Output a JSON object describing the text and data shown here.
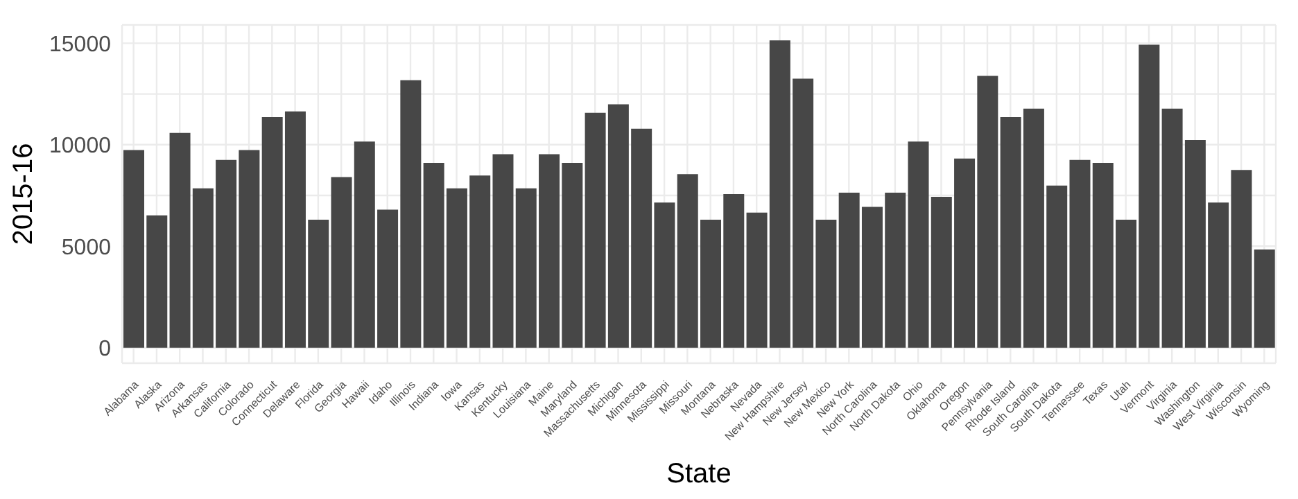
{
  "chart_data": {
    "type": "bar",
    "xlabel": "State",
    "ylabel": "2015-16",
    "categories": [
      "Alabama",
      "Alaska",
      "Arizona",
      "Arkansas",
      "California",
      "Colorado",
      "Connecticut",
      "Delaware",
      "Florida",
      "Georgia",
      "Hawaii",
      "Idaho",
      "Illinois",
      "Indiana",
      "Iowa",
      "Kansas",
      "Kentucky",
      "Louisiana",
      "Maine",
      "Maryland",
      "Massachusetts",
      "Michigan",
      "Minnesota",
      "Mississippi",
      "Missouri",
      "Montana",
      "Nebraska",
      "Nevada",
      "New Hampshire",
      "New Jersey",
      "New Mexico",
      "New York",
      "North Carolina",
      "North Dakota",
      "Ohio",
      "Oklahoma",
      "Oregon",
      "Pennsylvania",
      "Rhode Island",
      "South Carolina",
      "South Dakota",
      "Tennessee",
      "Texas",
      "Utah",
      "Vermont",
      "Virginia",
      "Washington",
      "West Virginia",
      "Wisconsin",
      "Wyoming"
    ],
    "values": [
      9740,
      6520,
      10580,
      7850,
      9250,
      9740,
      11360,
      11640,
      6310,
      8410,
      10160,
      6800,
      13180,
      9110,
      7850,
      8480,
      9530,
      7850,
      9530,
      9110,
      11570,
      11990,
      10790,
      7150,
      8550,
      6310,
      7570,
      6660,
      15140,
      13250,
      6310,
      7640,
      6940,
      7640,
      10160,
      7430,
      9320,
      13390,
      11360,
      11780,
      7990,
      9250,
      9110,
      6310,
      14930,
      11780,
      10230,
      7150,
      8760,
      4840
    ],
    "color": "#474747",
    "ylim": [
      -760,
      15900
    ],
    "yticks": [
      0,
      {
        "value": 2500,
        "label": null
      },
      5000,
      {
        "value": 7500,
        "label": null
      },
      10000,
      {
        "value": 12500,
        "label": null
      },
      15000
    ],
    "grid": true
  }
}
